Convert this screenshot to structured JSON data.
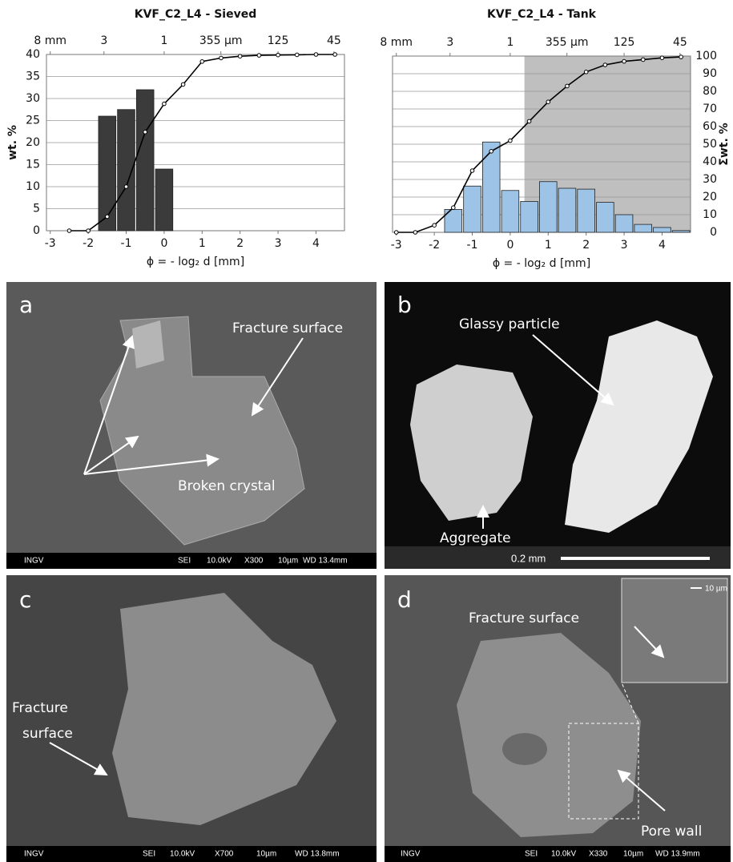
{
  "chart_data": [
    {
      "type": "histogram",
      "title": "KVF_C2_L4 - Sieved",
      "x_label": "ϕ = - log₂ d [mm]",
      "y_label": "wt. %",
      "xlim": [
        -3.1,
        4.75
      ],
      "xticks": [
        -3,
        -2,
        -1,
        0,
        1,
        2,
        3,
        4
      ],
      "x2ticks": [
        {
          "value": -3,
          "label": "8 mm"
        },
        {
          "value": -1.585,
          "label": "3"
        },
        {
          "value": 0,
          "label": "1"
        },
        {
          "value": 1.494,
          "label": "355 µm"
        },
        {
          "value": 3,
          "label": "125"
        },
        {
          "value": 4.474,
          "label": "45"
        }
      ],
      "ylim": [
        0,
        40
      ],
      "yticks": [
        0,
        5,
        10,
        15,
        20,
        25,
        30,
        35,
        40
      ],
      "y2lim": [
        0,
        100
      ],
      "grid": true,
      "bins": [
        -1.75,
        -1.25,
        -0.75,
        -0.25,
        0.25
      ],
      "values": [
        26,
        27.5,
        32,
        14
      ],
      "color": "#3b3b3b",
      "cumulative": {
        "axis": "y2",
        "color": "#000000",
        "x": [
          -2.5,
          -2,
          -1.5,
          -1,
          -0.5,
          0,
          0.5,
          1,
          1.5,
          2,
          2.5,
          3,
          3.5,
          4,
          4.5
        ],
        "values": [
          0,
          0,
          8,
          25,
          56,
          72,
          83,
          96,
          98,
          99,
          99.5,
          99.7,
          99.8,
          100,
          100
        ]
      }
    },
    {
      "type": "histogram",
      "title": "KVF_C2_L4 - Tank",
      "x_label": "ϕ = - log₂ d [mm]",
      "y2_label": "Σwt. %",
      "xlim": [
        -3.1,
        4.75
      ],
      "xticks": [
        -3,
        -2,
        -1,
        0,
        1,
        2,
        3,
        4
      ],
      "x2ticks": [
        {
          "value": -3,
          "label": "8 mm"
        },
        {
          "value": -1.585,
          "label": "3"
        },
        {
          "value": 0,
          "label": "1"
        },
        {
          "value": 1.494,
          "label": "355 µm"
        },
        {
          "value": 3,
          "label": "125"
        },
        {
          "value": 4.474,
          "label": "45"
        }
      ],
      "ylim": [
        0,
        40
      ],
      "y2lim": [
        0,
        100
      ],
      "y2ticks": [
        0,
        10,
        20,
        30,
        40,
        50,
        60,
        70,
        80,
        90,
        100
      ],
      "grid": true,
      "shade_from": 0.375,
      "bins": [
        -1.75,
        -1.25,
        -0.75,
        -0.25,
        0.25,
        0.75,
        1.25,
        1.75,
        2.25,
        2.75,
        3.25,
        3.75,
        4.25,
        4.75
      ],
      "values": [
        5.2,
        10.5,
        20.5,
        9.5,
        7,
        11.5,
        10,
        9.8,
        6.8,
        4,
        1.8,
        1.1,
        0.4
      ],
      "color": "#9dc3e6",
      "cumulative": {
        "axis": "y2",
        "color": "#000000",
        "x": [
          -3,
          -2.5,
          -2,
          -1.5,
          -1,
          -0.5,
          0,
          0.5,
          1,
          1.5,
          2,
          2.5,
          3,
          3.5,
          4,
          4.5
        ],
        "values": [
          0,
          0,
          4,
          14,
          35,
          46,
          52,
          63,
          74,
          83,
          91,
          95,
          97,
          98,
          99,
          99.5
        ]
      }
    }
  ],
  "panels": [
    {
      "label": "a",
      "annotations": [
        "Fracture surface",
        "Broken crystal"
      ],
      "info_bar": [
        "INGV",
        "SEI",
        "10.0kV",
        "X300",
        "10µm",
        "WD 13.4mm"
      ]
    },
    {
      "label": "b",
      "annotations": [
        "Glassy particle",
        "Aggregate"
      ],
      "scale_bar": "0.2 mm"
    },
    {
      "label": "c",
      "annotations": [
        "Fracture",
        "surface"
      ],
      "info_bar": [
        "INGV",
        "SEI",
        "10.0kV",
        "X700",
        "10µm",
        "WD 13.8mm"
      ]
    },
    {
      "label": "d",
      "annotations": [
        "Fracture surface",
        "Pore wall"
      ],
      "inset_scale": "10 µm",
      "info_bar": [
        "INGV",
        "SEI",
        "10.0kV",
        "X330",
        "10µm",
        "WD 13.9mm"
      ]
    }
  ]
}
